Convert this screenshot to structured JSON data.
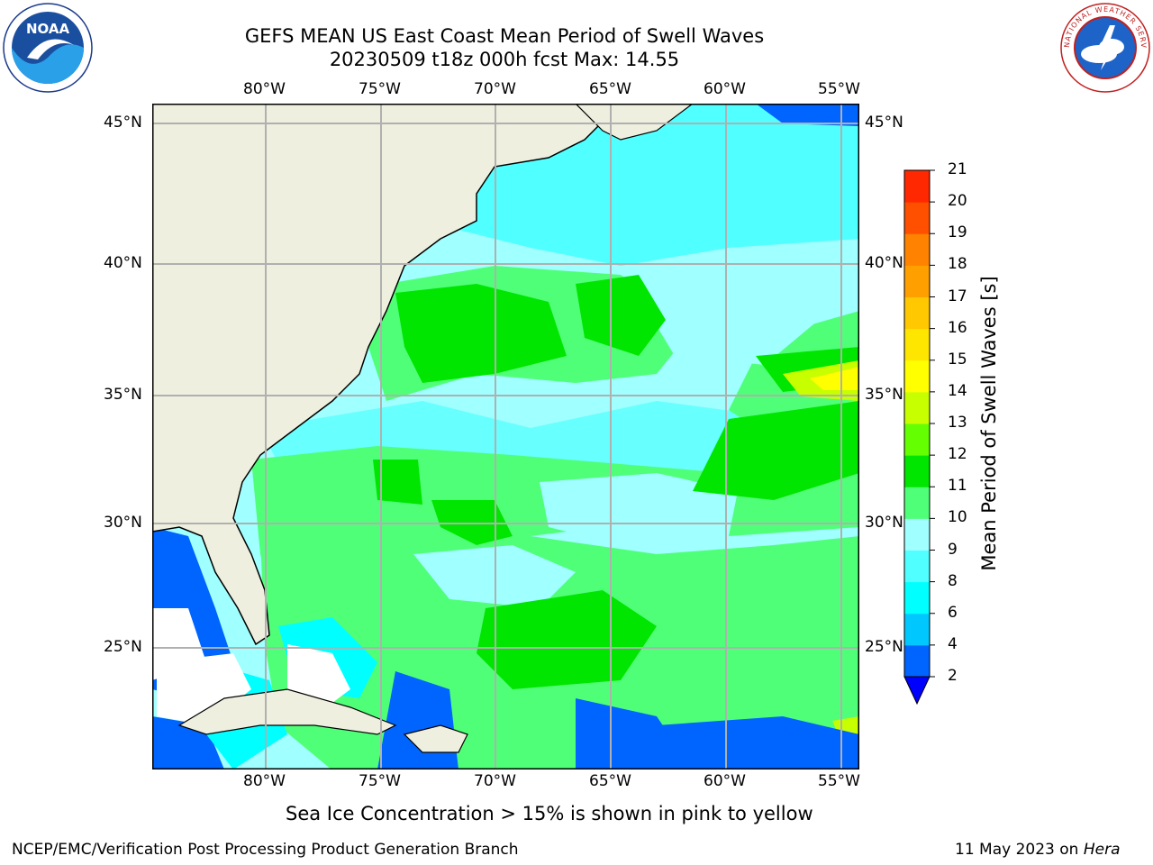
{
  "header": {
    "title_line1": "GEFS MEAN US East Coast Mean Period of Swell Waves",
    "title_line2": "20230509 t18z 000h fcst   Max: 14.55"
  },
  "logos": {
    "left": "NOAA",
    "right_text": "NATIONAL WEATHER SERVICE"
  },
  "map": {
    "lon_labels": [
      "80°W",
      "75°W",
      "70°W",
      "65°W",
      "60°W",
      "55°W"
    ],
    "lat_labels": [
      "45°N",
      "40°N",
      "35°N",
      "30°N",
      "25°N"
    ],
    "colors": {
      "land": "#efefdf",
      "grid": "#b0b0b0"
    }
  },
  "colorbar": {
    "title": "Mean Period of Swell Waves [s]",
    "ticks": [
      "2",
      "4",
      "6",
      "8",
      "9",
      "10",
      "11",
      "12",
      "13",
      "14",
      "15",
      "16",
      "17",
      "18",
      "19",
      "20",
      "21"
    ],
    "colors": [
      "#0064ff",
      "#00c8ff",
      "#00ffff",
      "#50ffff",
      "#a0ffff",
      "#50ff78",
      "#00e600",
      "#64ff00",
      "#c8ff00",
      "#ffff00",
      "#ffe600",
      "#ffc800",
      "#ffa000",
      "#ff8200",
      "#ff5000",
      "#ff2800",
      "#ff0000"
    ],
    "extend_color": "#0000ff"
  },
  "note": "Sea Ice Concentration > 15% is shown in pink to yellow",
  "footer": {
    "left": "NCEP/EMC/Verification Post Processing Product Generation Branch",
    "right_date": "11 May 2023 on ",
    "right_host": "Hera"
  }
}
